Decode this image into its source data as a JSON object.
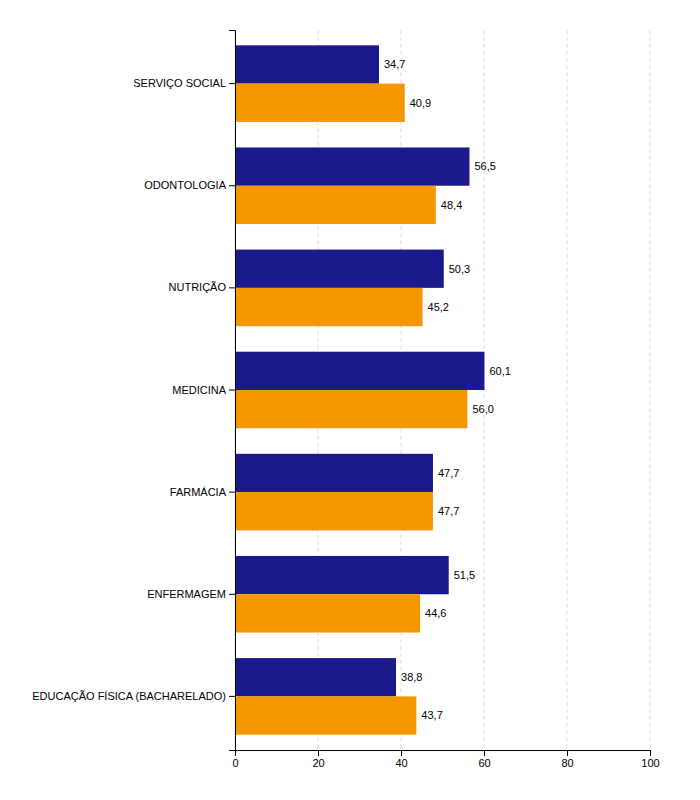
{
  "chart_data": {
    "type": "bar",
    "orientation": "horizontal",
    "categories": [
      "EDUCAÇÃO FÍSICA (BACHARELADO)",
      "ENFERMAGEM",
      "FARMÁCIA",
      "MEDICINA",
      "NUTRIÇÃO",
      "ODONTOLOGIA",
      "SERVIÇO SOCIAL"
    ],
    "series": [
      {
        "color": "#1a1a8c",
        "values": [
          38.8,
          51.5,
          47.7,
          60.1,
          50.3,
          56.5,
          34.7
        ],
        "value_labels": [
          "38,8",
          "51,5",
          "47,7",
          "60,1",
          "50,3",
          "56,5",
          "34,7"
        ]
      },
      {
        "color": "#f59800",
        "values": [
          43.7,
          44.6,
          47.7,
          56.0,
          45.2,
          48.4,
          40.9
        ],
        "value_labels": [
          "43,7",
          "44,6",
          "47,7",
          "56,0",
          "45,2",
          "48,4",
          "40,9"
        ]
      }
    ],
    "xlim": [
      0,
      100
    ],
    "xticks": [
      0,
      20,
      40,
      60,
      80,
      100
    ],
    "grid": true,
    "data_labels": true
  }
}
